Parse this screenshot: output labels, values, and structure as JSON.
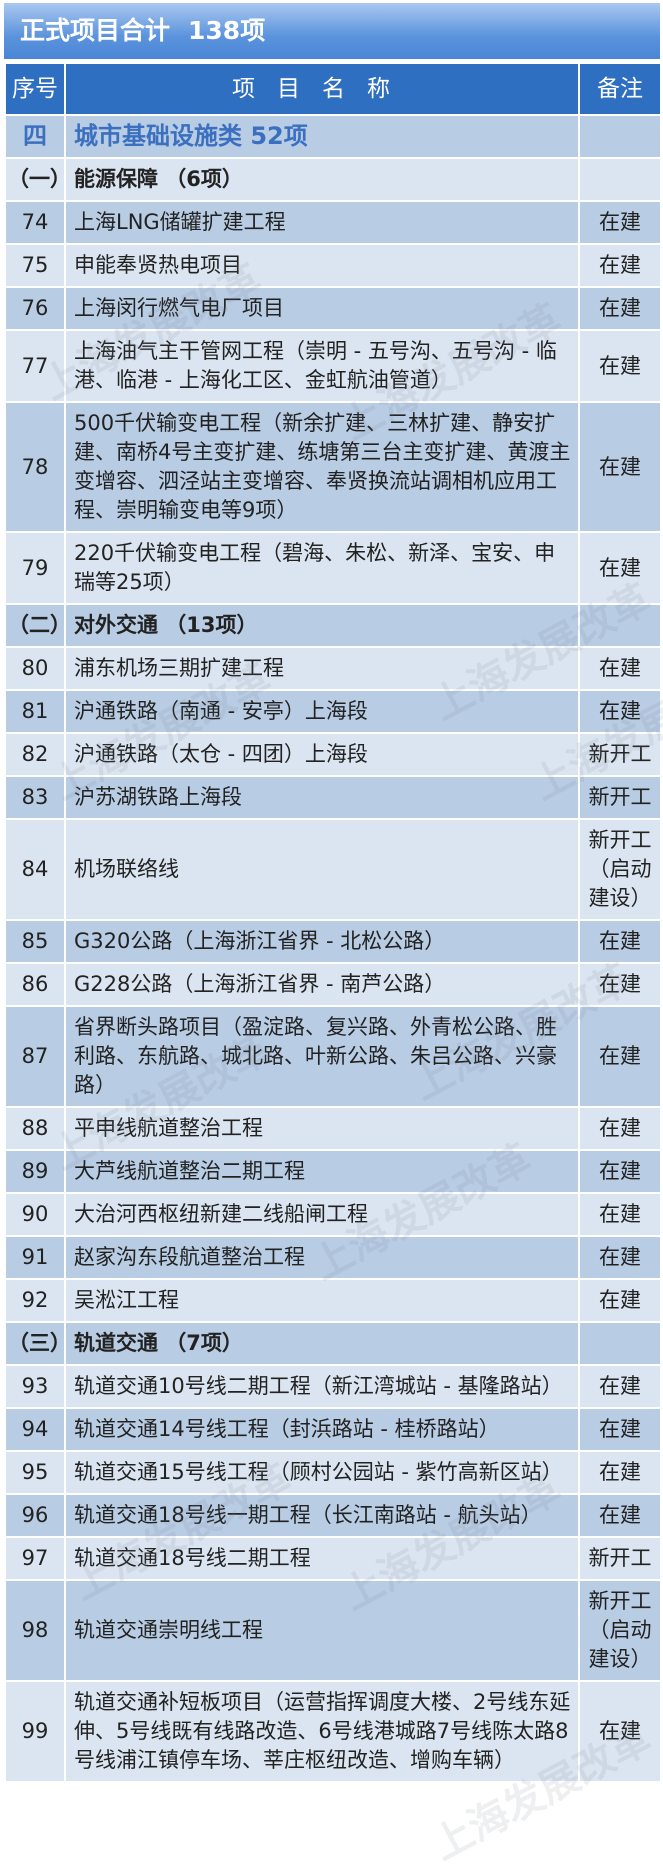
{
  "title": {
    "label": "正式项目合计",
    "count": "138项"
  },
  "header": {
    "seq": "序号",
    "name": "项目名称",
    "note": "备注"
  },
  "watermark": "上海发展改革",
  "colors": {
    "title_bar": "#4a86d6",
    "header": "#2f6fc2",
    "row_dark": "#b8cce4",
    "row_light": "#dbe5f1",
    "category_text": "#3b6fbf"
  },
  "rows": [
    {
      "type": "category",
      "seq": "四",
      "name": "城市基础设施类  52项",
      "note": ""
    },
    {
      "type": "section",
      "seq": "（一）",
      "name": "能源保障 （6项）",
      "note": ""
    },
    {
      "type": "item",
      "seq": "74",
      "name": "上海LNG储罐扩建工程",
      "note": "在建"
    },
    {
      "type": "item",
      "seq": "75",
      "name": "申能奉贤热电项目",
      "note": "在建"
    },
    {
      "type": "item",
      "seq": "76",
      "name": "上海闵行燃气电厂项目",
      "note": "在建"
    },
    {
      "type": "item",
      "seq": "77",
      "name": "上海油气主干管网工程（崇明 - 五号沟、五号沟 - 临港、临港 - 上海化工区、金虹航油管道）",
      "note": "在建"
    },
    {
      "type": "item",
      "seq": "78",
      "name": "500千伏输变电工程（新余扩建、三林扩建、静安扩建、南桥4号主变扩建、练塘第三台主变扩建、黄渡主变增容、泗泾站主变增容、奉贤换流站调相机应用工程、崇明输变电等9项）",
      "note": "在建"
    },
    {
      "type": "item",
      "seq": "79",
      "name": "220千伏输变电工程（碧海、朱松、新泽、宝安、申瑞等25项）",
      "note": "在建"
    },
    {
      "type": "section",
      "seq": "（二）",
      "name": "对外交通 （13项）",
      "note": ""
    },
    {
      "type": "item",
      "seq": "80",
      "name": "浦东机场三期扩建工程",
      "note": "在建"
    },
    {
      "type": "item",
      "seq": "81",
      "name": "沪通铁路（南通 - 安亭）上海段",
      "note": "在建"
    },
    {
      "type": "item",
      "seq": "82",
      "name": "沪通铁路（太仓 - 四团）上海段",
      "note": "新开工"
    },
    {
      "type": "item",
      "seq": "83",
      "name": "沪苏湖铁路上海段",
      "note": "新开工"
    },
    {
      "type": "item",
      "seq": "84",
      "name": "机场联络线",
      "note": "新开工（启动建设）"
    },
    {
      "type": "item",
      "seq": "85",
      "name": "G320公路（上海浙江省界 - 北松公路）",
      "note": "在建"
    },
    {
      "type": "item",
      "seq": "86",
      "name": "G228公路（上海浙江省界 - 南芦公路）",
      "note": "在建"
    },
    {
      "type": "item",
      "seq": "87",
      "name": "省界断头路项目（盈淀路、复兴路、外青松公路、胜利路、东航路、城北路、叶新公路、朱吕公路、兴豪路）",
      "note": "在建"
    },
    {
      "type": "item",
      "seq": "88",
      "name": "平申线航道整治工程",
      "note": "在建"
    },
    {
      "type": "item",
      "seq": "89",
      "name": "大芦线航道整治二期工程",
      "note": "在建"
    },
    {
      "type": "item",
      "seq": "90",
      "name": "大治河西枢纽新建二线船闸工程",
      "note": "在建"
    },
    {
      "type": "item",
      "seq": "91",
      "name": "赵家沟东段航道整治工程",
      "note": "在建"
    },
    {
      "type": "item",
      "seq": "92",
      "name": "吴淞江工程",
      "note": "在建"
    },
    {
      "type": "section",
      "seq": "（三）",
      "name": "轨道交通 （7项）",
      "note": ""
    },
    {
      "type": "item",
      "seq": "93",
      "name": "轨道交通10号线二期工程（新江湾城站 - 基隆路站）",
      "note": "在建"
    },
    {
      "type": "item",
      "seq": "94",
      "name": "轨道交通14号线工程（封浜路站 - 桂桥路站）",
      "note": "在建"
    },
    {
      "type": "item",
      "seq": "95",
      "name": "轨道交通15号线工程（顾村公园站 - 紫竹高新区站）",
      "note": "在建"
    },
    {
      "type": "item",
      "seq": "96",
      "name": "轨道交通18号线一期工程（长江南路站 - 航头站）",
      "note": "在建"
    },
    {
      "type": "item",
      "seq": "97",
      "name": "轨道交通18号线二期工程",
      "note": "新开工"
    },
    {
      "type": "item",
      "seq": "98",
      "name": "轨道交通崇明线工程",
      "note": "新开工（启动建设）"
    },
    {
      "type": "item",
      "seq": "99",
      "name": "轨道交通补短板项目（运营指挥调度大楼、2号线东延伸、5号线既有线路改造、6号线港城路7号线陈太路8号线浦江镇停车场、莘庄枢纽改造、增购车辆）",
      "note": "在建"
    }
  ]
}
